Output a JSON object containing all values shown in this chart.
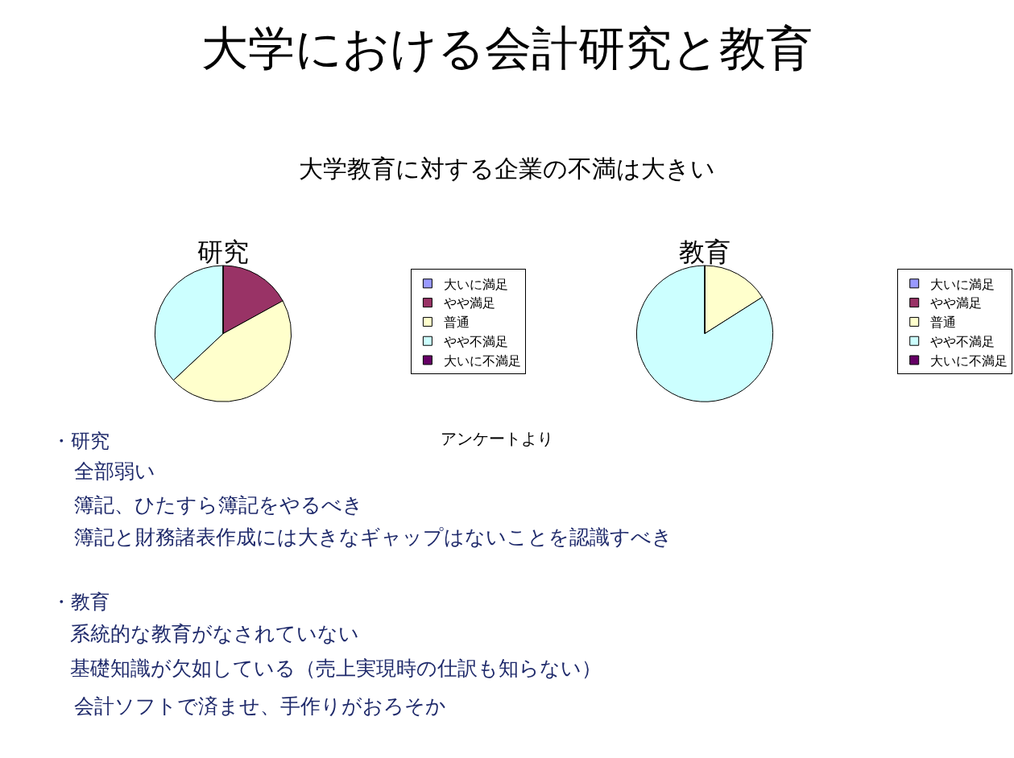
{
  "chart_data": [
    {
      "type": "pie",
      "title": "研究",
      "categories": [
        "大いに満足",
        "やや満足",
        "普通",
        "やや不満足",
        "大いに不満足"
      ],
      "values": [
        0,
        17,
        46,
        37,
        0
      ],
      "colors": [
        "#9999ff",
        "#993366",
        "#ffffcc",
        "#ccffff",
        "#660066"
      ],
      "legend": "right",
      "annotations": [
        "大学における会計研究と教育",
        "大学教育に対する企業の不満は大きい",
        "アンケートより",
        "・研究",
        "全部弱い",
        "簿記、ひたすら簿記をやるべき",
        "簿記と財務諸表作成には大きなギャップはないことを認識すべき",
        "・教育",
        "系統的な教育がなされていない",
        "基礎知識が欠如している（売上実現時の仕訳も知らない）",
        "会計ソフトで済ませ、手作りがおろそか"
      ]
    },
    {
      "type": "pie",
      "title": "教育",
      "categories": [
        "大いに満足",
        "やや満足",
        "普通",
        "やや不満足",
        "大いに不満足"
      ],
      "values": [
        0,
        0,
        16,
        84,
        0
      ],
      "colors": [
        "#9999ff",
        "#993366",
        "#ffffcc",
        "#ccffff",
        "#660066"
      ],
      "legend": "right"
    }
  ]
}
